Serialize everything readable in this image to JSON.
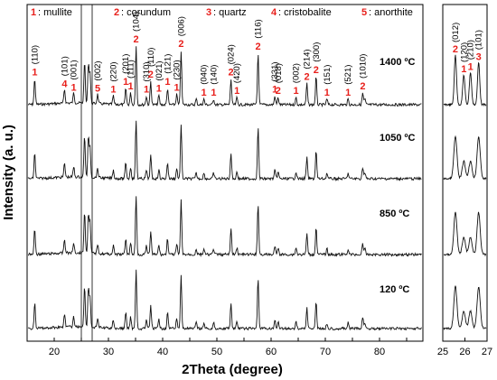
{
  "chart_data": {
    "type": "line",
    "xlabel": "2Theta (degree)",
    "ylabel": "Intensity (a. u.)",
    "main_xlim": [
      15,
      88
    ],
    "main_xticks": [
      15,
      20,
      25,
      30,
      35,
      40,
      45,
      50,
      55,
      60,
      65,
      70,
      75,
      80,
      85
    ],
    "main_xtick_labels": [
      "",
      "20",
      "",
      "30",
      "",
      "40",
      "",
      "50",
      "",
      "60",
      "",
      "70",
      "",
      "80",
      ""
    ],
    "inset_xlim": [
      25,
      27
    ],
    "inset_xtick_labels": [
      "25",
      "26",
      "27"
    ],
    "legend": [
      {
        "num": "1",
        "label": ": mullite"
      },
      {
        "num": "2",
        "label": ": corundum"
      },
      {
        "num": "3",
        "label": ": quartz"
      },
      {
        "num": "4",
        "label": ": cristobalite"
      },
      {
        "num": "5",
        "label": ": anorthite"
      }
    ],
    "series": [
      {
        "name": "1400 ºC",
        "offset": 0
      },
      {
        "name": "1050 ºC",
        "offset": 1
      },
      {
        "name": "850 ºC",
        "offset": 2
      },
      {
        "name": "120 ºC",
        "offset": 3
      }
    ],
    "peaks": [
      {
        "x": 16.4,
        "h": 0.55,
        "hkl": "(110)",
        "phase": "1"
      },
      {
        "x": 21.9,
        "h": 0.3,
        "hkl": "(101)",
        "phase": "4"
      },
      {
        "x": 23.6,
        "h": 0.22,
        "hkl": "(001)",
        "phase": "1"
      },
      {
        "x": 25.6,
        "h": 0.9,
        "hkl": "",
        "phase": ""
      },
      {
        "x": 26.3,
        "h": 0.85,
        "hkl": "",
        "phase": ""
      },
      {
        "x": 26.6,
        "h": 0.65,
        "hkl": "",
        "phase": ""
      },
      {
        "x": 28.0,
        "h": 0.2,
        "hkl": "(002)",
        "phase": "5"
      },
      {
        "x": 30.9,
        "h": 0.18,
        "hkl": "(220)",
        "phase": "1"
      },
      {
        "x": 33.2,
        "h": 0.35,
        "hkl": "(201)",
        "phase": "1"
      },
      {
        "x": 34.1,
        "h": 0.25,
        "hkl": "(111)",
        "phase": "1"
      },
      {
        "x": 35.1,
        "h": 1.25,
        "hkl": "(104)",
        "phase": "2"
      },
      {
        "x": 37.0,
        "h": 0.18,
        "hkl": "(310)",
        "phase": "1"
      },
      {
        "x": 37.8,
        "h": 0.5,
        "hkl": "(110)",
        "phase": "2"
      },
      {
        "x": 39.3,
        "h": 0.2,
        "hkl": "(021)",
        "phase": "1"
      },
      {
        "x": 40.9,
        "h": 0.35,
        "hkl": "(121)",
        "phase": "1"
      },
      {
        "x": 42.6,
        "h": 0.22,
        "hkl": "(230)",
        "phase": "1"
      },
      {
        "x": 43.4,
        "h": 1.15,
        "hkl": "(006)",
        "phase": "2"
      },
      {
        "x": 46.2,
        "h": 0.12,
        "hkl": "",
        "phase": ""
      },
      {
        "x": 47.6,
        "h": 0.12,
        "hkl": "(040)",
        "phase": "1"
      },
      {
        "x": 49.4,
        "h": 0.12,
        "hkl": "(140)",
        "phase": "1"
      },
      {
        "x": 52.6,
        "h": 0.55,
        "hkl": "(024)",
        "phase": "2"
      },
      {
        "x": 53.7,
        "h": 0.15,
        "hkl": "(420)",
        "phase": "1"
      },
      {
        "x": 57.6,
        "h": 1.1,
        "hkl": "(116)",
        "phase": "2"
      },
      {
        "x": 60.7,
        "h": 0.18,
        "hkl": "(331)",
        "phase": "1"
      },
      {
        "x": 61.3,
        "h": 0.15,
        "hkl": "(018)",
        "phase": "2"
      },
      {
        "x": 64.6,
        "h": 0.15,
        "hkl": "(002)",
        "phase": "1"
      },
      {
        "x": 66.6,
        "h": 0.45,
        "hkl": "(214)",
        "phase": "2"
      },
      {
        "x": 68.3,
        "h": 0.6,
        "hkl": "(300)",
        "phase": "2"
      },
      {
        "x": 70.3,
        "h": 0.12,
        "hkl": "(151)",
        "phase": "1"
      },
      {
        "x": 74.2,
        "h": 0.12,
        "hkl": "(521)",
        "phase": "1"
      },
      {
        "x": 76.9,
        "h": 0.25,
        "hkl": "(1010)",
        "phase": "2"
      },
      {
        "x": 77.3,
        "h": 0.12,
        "hkl": "",
        "phase": ""
      }
    ],
    "inset_peaks": [
      {
        "x": 25.57,
        "h": 1.0,
        "hkl": "(012)",
        "phase": "2"
      },
      {
        "x": 25.95,
        "h": 0.6,
        "hkl": "(120)",
        "phase": "1"
      },
      {
        "x": 26.25,
        "h": 0.65,
        "hkl": "(210)",
        "phase": "1"
      },
      {
        "x": 26.62,
        "h": 0.85,
        "hkl": "(101)",
        "phase": "3"
      }
    ]
  }
}
